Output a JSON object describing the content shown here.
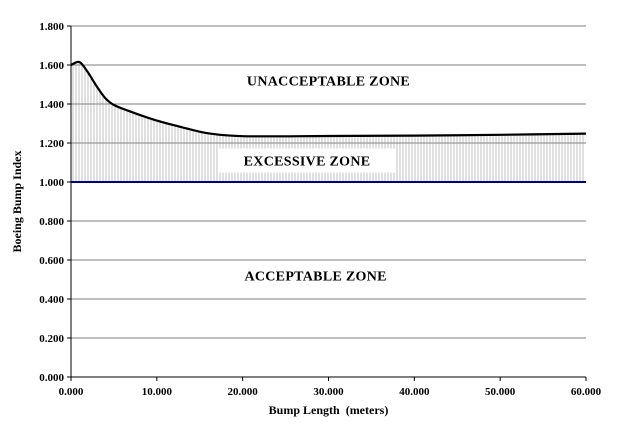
{
  "chart_data": {
    "type": "line",
    "xlabel": "Bump Length  (meters)",
    "ylabel": "Boeing Bump Index",
    "xlim": [
      0,
      60
    ],
    "ylim": [
      0,
      1.8
    ],
    "x_ticks": [
      0,
      10,
      20,
      30,
      40,
      50,
      60
    ],
    "x_tick_labels": [
      "0.000",
      "10.000",
      "20.000",
      "30.000",
      "40.000",
      "50.000",
      "60.000"
    ],
    "y_ticks": [
      0,
      0.2,
      0.4,
      0.6,
      0.8,
      1.0,
      1.2,
      1.4,
      1.6,
      1.8
    ],
    "y_tick_labels": [
      "0.000",
      "0.200",
      "0.400",
      "0.600",
      "0.800",
      "1.000",
      "1.200",
      "1.400",
      "1.600",
      "1.800"
    ],
    "grid": "horizontal",
    "series": [
      {
        "color": "#000000",
        "x": [
          0,
          1,
          2,
          3,
          4,
          5,
          7,
          10,
          13,
          16,
          20,
          30,
          40,
          50,
          60
        ],
        "values": [
          1.6,
          1.615,
          1.56,
          1.49,
          1.43,
          1.395,
          1.36,
          1.315,
          1.28,
          1.25,
          1.235,
          1.236,
          1.238,
          1.242,
          1.248
        ]
      }
    ],
    "reference_line": {
      "y": 1.0,
      "color": "#00007f"
    },
    "zones": [
      {
        "label": "UNACCEPTABLE ZONE",
        "x": 30,
        "y": 1.52
      },
      {
        "label": "EXCESSIVE  ZONE",
        "x": 27.5,
        "y": 1.11
      },
      {
        "label": "ACCEPTABLE ZONE",
        "x": 28.5,
        "y": 0.52
      }
    ],
    "excessive_zone_hatch": true
  }
}
